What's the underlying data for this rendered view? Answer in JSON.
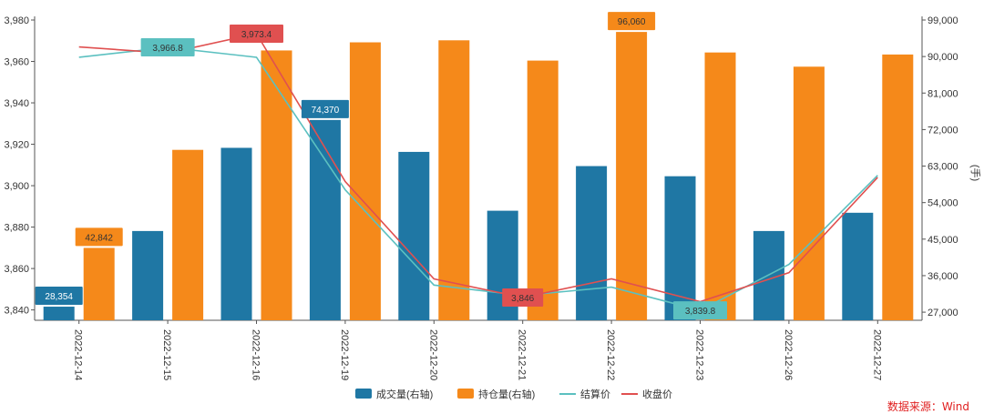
{
  "chart_data": {
    "type": "bar",
    "categories": [
      "2022-12-14",
      "2022-12-15",
      "2022-12-16",
      "2022-12-19",
      "2022-12-20",
      "2022-12-21",
      "2022-12-22",
      "2022-12-23",
      "2022-12-26",
      "2022-12-27"
    ],
    "y_left": {
      "min": 3835,
      "max": 3980,
      "ticks": [
        3840,
        3860,
        3880,
        3900,
        3920,
        3940,
        3960,
        3980
      ]
    },
    "y_right": {
      "min": 25000,
      "max": 99000,
      "ticks": [
        27000,
        36000,
        45000,
        54000,
        63000,
        72000,
        81000,
        90000,
        99000
      ],
      "label": "(手)"
    },
    "series": [
      {
        "name": "成交量(右轴)",
        "type": "bar",
        "axis": "right",
        "color": "#1f77a4",
        "values": [
          28354,
          47000,
          67500,
          74370,
          66500,
          52000,
          63000,
          60500,
          47000,
          51500
        ]
      },
      {
        "name": "持仓量(右轴)",
        "type": "bar",
        "axis": "right",
        "color": "#f5891a",
        "values": [
          42842,
          67000,
          91500,
          93500,
          94000,
          89000,
          96060,
          91000,
          87500,
          90500
        ]
      },
      {
        "name": "结算价",
        "type": "line",
        "axis": "left",
        "color": "#5bc0c0",
        "values": [
          3962,
          3966.8,
          3962,
          3898,
          3852,
          3847,
          3851,
          3839.8,
          3862,
          3905
        ]
      },
      {
        "name": "收盘价",
        "type": "line",
        "axis": "left",
        "color": "#e05050",
        "values": [
          3967,
          3964,
          3973.4,
          3902,
          3855,
          3846,
          3855,
          3844,
          3858,
          3904
        ]
      }
    ],
    "data_labels": [
      {
        "series": 0,
        "index": 0,
        "text": "28,354"
      },
      {
        "series": 0,
        "index": 3,
        "text": "74,370"
      },
      {
        "series": 1,
        "index": 0,
        "text": "42,842"
      },
      {
        "series": 1,
        "index": 6,
        "text": "96,060"
      },
      {
        "series": 2,
        "index": 1,
        "text": "3,966.8"
      },
      {
        "series": 2,
        "index": 7,
        "text": "3,839.8"
      },
      {
        "series": 3,
        "index": 2,
        "text": "3,973.4"
      },
      {
        "series": 3,
        "index": 5,
        "text": "3,846"
      }
    ],
    "legend_position": "bottom-center",
    "grid": false
  },
  "source": "数据来源：Wind"
}
